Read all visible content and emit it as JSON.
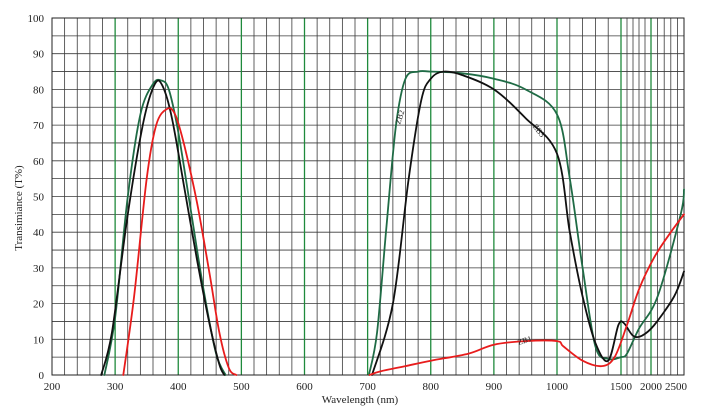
{
  "chart_data": {
    "type": "line",
    "title": "",
    "xlabel": "Wavelength (nm)",
    "ylabel": "Transimiance (T%)",
    "ylim": [
      0,
      100
    ],
    "grid": true,
    "x_ticks": [
      {
        "x": 200,
        "label": "200"
      },
      {
        "x": 300,
        "label": "300"
      },
      {
        "x": 400,
        "label": "400"
      },
      {
        "x": 500,
        "label": "500"
      },
      {
        "x": 600,
        "label": "600"
      },
      {
        "x": 700,
        "label": "700"
      },
      {
        "x": 800,
        "label": "800"
      },
      {
        "x": 900,
        "label": "900"
      },
      {
        "x": 1000,
        "label": "1000"
      },
      {
        "x": 1500,
        "label": "1500"
      },
      {
        "x": 2000,
        "label": "2000"
      },
      {
        "x": 2500,
        "label": "2500"
      }
    ],
    "y_ticks": [
      0,
      10,
      20,
      30,
      40,
      50,
      60,
      70,
      80,
      90,
      100
    ],
    "series": [
      {
        "name": "ZB2",
        "color": "#1f6b45",
        "points": [
          [
            283,
            0
          ],
          [
            300,
            16
          ],
          [
            320,
            50
          ],
          [
            340,
            73
          ],
          [
            360,
            81.5
          ],
          [
            373,
            82.5
          ],
          [
            385,
            80
          ],
          [
            400,
            68
          ],
          [
            420,
            46
          ],
          [
            440,
            24
          ],
          [
            460,
            6
          ],
          [
            475,
            0
          ],
          [
            702,
            0
          ],
          [
            715,
            12
          ],
          [
            730,
            42
          ],
          [
            745,
            70
          ],
          [
            760,
            83
          ],
          [
            780,
            85
          ],
          [
            800,
            85
          ],
          [
            850,
            84.5
          ],
          [
            900,
            83
          ],
          [
            950,
            80
          ],
          [
            1000,
            73
          ],
          [
            1100,
            55
          ],
          [
            1200,
            30
          ],
          [
            1300,
            8
          ],
          [
            1400,
            4.5
          ],
          [
            1500,
            5
          ],
          [
            1600,
            6
          ],
          [
            1800,
            13
          ],
          [
            2100,
            22
          ],
          [
            2450,
            45
          ],
          [
            2500,
            52
          ]
        ]
      },
      {
        "name": "ZB3",
        "color": "#111111",
        "points": [
          [
            278,
            0
          ],
          [
            295,
            12
          ],
          [
            320,
            45
          ],
          [
            345,
            71
          ],
          [
            363,
            81.5
          ],
          [
            375,
            81
          ],
          [
            390,
            72
          ],
          [
            410,
            52
          ],
          [
            430,
            32
          ],
          [
            450,
            14
          ],
          [
            465,
            3
          ],
          [
            473,
            0
          ],
          [
            707,
            0
          ],
          [
            740,
            20
          ],
          [
            765,
            55
          ],
          [
            785,
            77
          ],
          [
            800,
            83
          ],
          [
            820,
            85
          ],
          [
            850,
            84
          ],
          [
            900,
            80
          ],
          [
            950,
            72
          ],
          [
            1000,
            62
          ],
          [
            1100,
            40
          ],
          [
            1200,
            22
          ],
          [
            1300,
            9
          ],
          [
            1400,
            4
          ],
          [
            1480,
            14
          ],
          [
            1550,
            14.5
          ],
          [
            1700,
            11
          ],
          [
            1850,
            11
          ],
          [
            2050,
            14
          ],
          [
            2350,
            22
          ],
          [
            2500,
            29
          ]
        ]
      },
      {
        "name": "ZB1",
        "color": "#e81c1c",
        "points": [
          [
            313,
            0
          ],
          [
            330,
            22
          ],
          [
            350,
            55
          ],
          [
            365,
            70
          ],
          [
            382,
            74.5
          ],
          [
            395,
            73
          ],
          [
            410,
            64
          ],
          [
            430,
            48
          ],
          [
            450,
            28
          ],
          [
            465,
            12
          ],
          [
            480,
            2
          ],
          [
            492,
            0
          ],
          [
            703,
            0
          ],
          [
            720,
            1
          ],
          [
            760,
            2.5
          ],
          [
            800,
            4
          ],
          [
            860,
            6
          ],
          [
            900,
            8.5
          ],
          [
            950,
            9.5
          ],
          [
            1000,
            9.5
          ],
          [
            1050,
            8
          ],
          [
            1200,
            4
          ],
          [
            1350,
            2.5
          ],
          [
            1450,
            5
          ],
          [
            1600,
            14
          ],
          [
            1800,
            24
          ],
          [
            2050,
            33
          ],
          [
            2300,
            40
          ],
          [
            2500,
            45
          ]
        ]
      }
    ],
    "annotations": [
      {
        "text": "ZB2",
        "series": "ZB2",
        "x": 755,
        "y": 72,
        "rotate": -72
      },
      {
        "text": "ZB3",
        "series": "ZB3",
        "x": 968,
        "y": 68,
        "rotate": 52
      },
      {
        "text": "ZB1",
        "series": "ZB1",
        "x": 950,
        "y": 9,
        "rotate": -18
      }
    ]
  }
}
